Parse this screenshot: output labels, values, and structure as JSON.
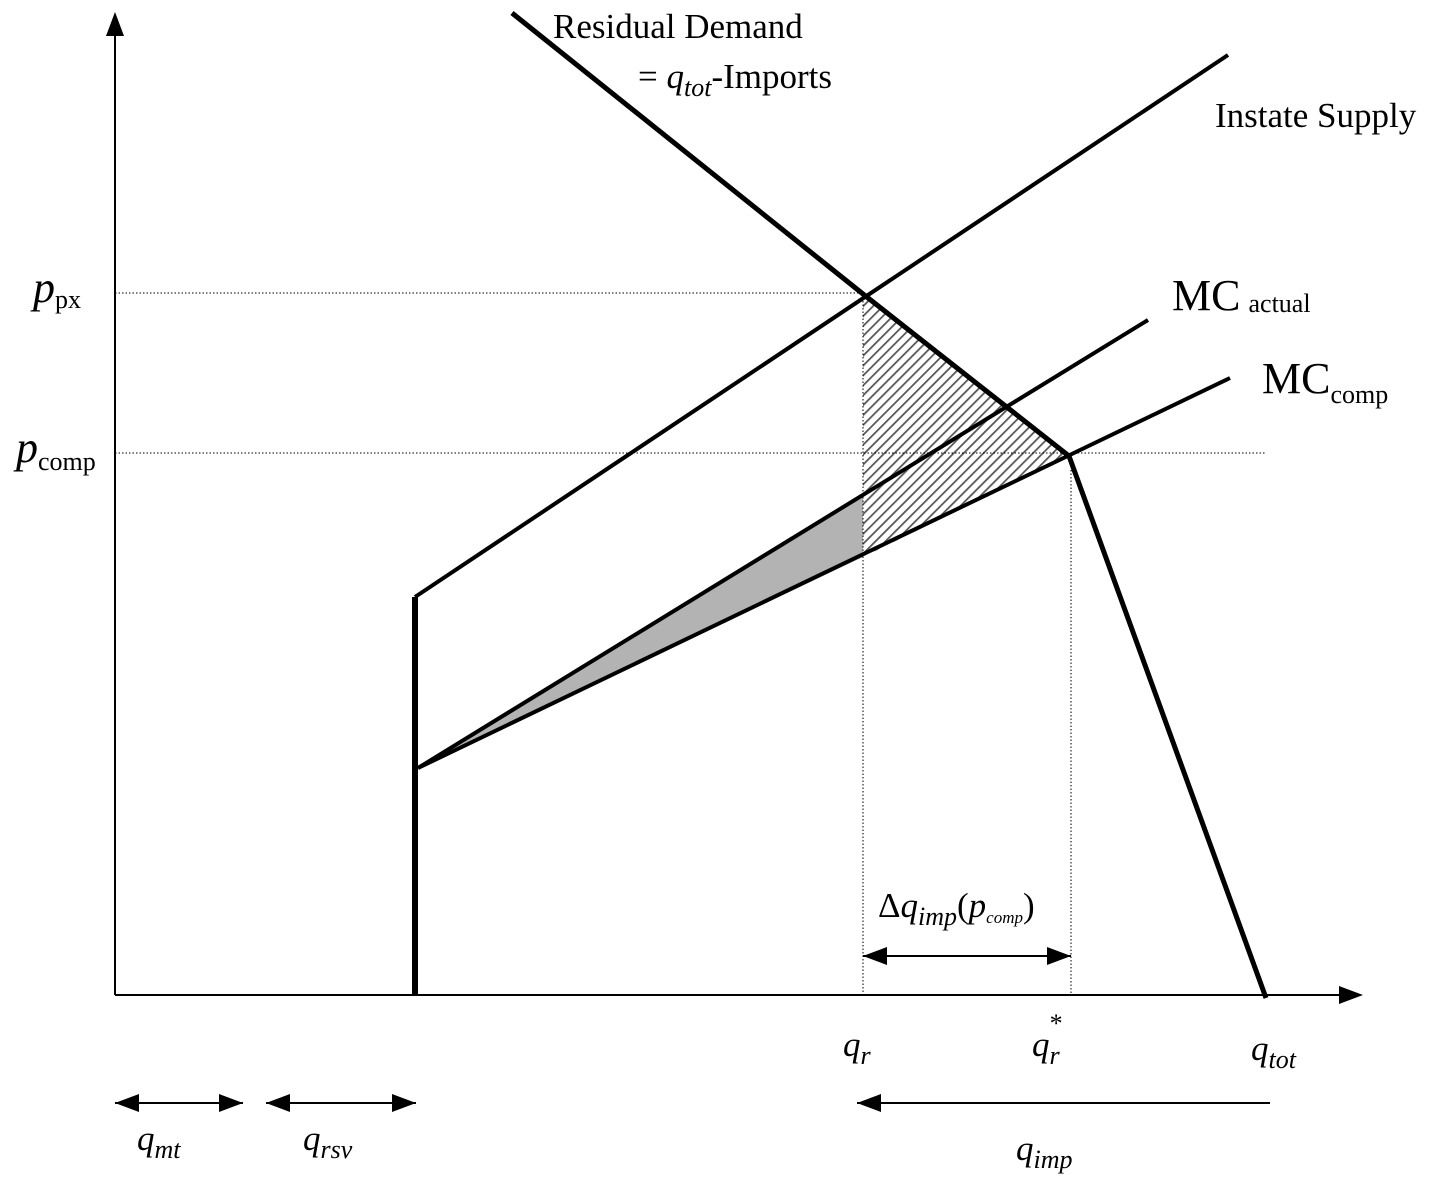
{
  "curves": {
    "residual_demand": {
      "line1": "Residual Demand",
      "eq_prefix": "= ",
      "eq_var": "q",
      "eq_sub": "tot",
      "eq_suffix": "-Imports"
    },
    "instate_supply": "Instate Supply",
    "mc_actual": {
      "main": "MC",
      "sub": "actual"
    },
    "mc_comp": {
      "main": "MC",
      "sub": "comp"
    }
  },
  "y_axis": {
    "p_px": {
      "var": "p",
      "sub": "px"
    },
    "p_comp": {
      "var": "p",
      "sub": "comp"
    }
  },
  "x_axis": {
    "q_r": {
      "var": "q",
      "sub": "r"
    },
    "q_r_star": {
      "var": "q",
      "sub": "r",
      "sup": "*"
    },
    "q_tot": {
      "var": "q",
      "sub": "tot"
    }
  },
  "spans": {
    "delta_q_imp": {
      "delta": "Δ",
      "var": "q",
      "sub": "imp",
      "open": "(",
      "arg_var": "p",
      "arg_sub": "comp",
      "close": ")"
    },
    "q_mt": {
      "var": "q",
      "sub": "mt"
    },
    "q_rsv": {
      "var": "q",
      "sub": "rsv"
    },
    "q_imp": {
      "var": "q",
      "sub": "imp"
    }
  },
  "colors": {
    "line": "#000000",
    "shade": "#b3b3b3",
    "hatch": "#555555"
  }
}
